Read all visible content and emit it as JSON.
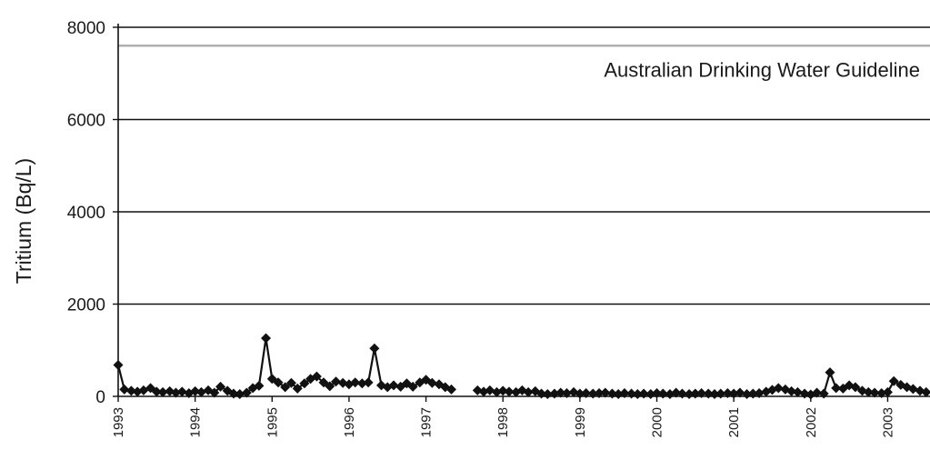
{
  "chart_data": {
    "type": "line",
    "title": "",
    "xlabel": "",
    "ylabel": "Tritium (Bq/L)",
    "ylim": [
      0,
      8000
    ],
    "yticks": [
      0,
      2000,
      4000,
      6000,
      8000
    ],
    "xlim": [
      1993.0,
      2003.55
    ],
    "xticks": [
      "1993",
      "1994",
      "1995",
      "1996",
      "1997",
      "1998",
      "1999",
      "2000",
      "2001",
      "2002",
      "2003"
    ],
    "grid": true,
    "reference_line": {
      "label": "Australian Drinking Water Guideline",
      "value": 7600,
      "color": "#b0b0b0"
    },
    "series": [
      {
        "name": "",
        "color": "#111111",
        "marker": "diamond",
        "segments": [
          [
            [
              1993.0,
              680
            ],
            [
              1993.08,
              150
            ],
            [
              1993.17,
              120
            ],
            [
              1993.25,
              100
            ],
            [
              1993.33,
              130
            ],
            [
              1993.42,
              180
            ],
            [
              1993.5,
              100
            ],
            [
              1993.58,
              90
            ],
            [
              1993.67,
              110
            ],
            [
              1993.75,
              80
            ],
            [
              1993.83,
              100
            ],
            [
              1993.92,
              70
            ],
            [
              1994.0,
              110
            ],
            [
              1994.08,
              90
            ],
            [
              1994.17,
              130
            ],
            [
              1994.25,
              80
            ],
            [
              1994.33,
              210
            ],
            [
              1994.42,
              120
            ],
            [
              1994.5,
              60
            ],
            [
              1994.58,
              50
            ],
            [
              1994.67,
              80
            ],
            [
              1994.75,
              180
            ],
            [
              1994.83,
              230
            ],
            [
              1994.92,
              1260
            ],
            [
              1995.0,
              380
            ],
            [
              1995.08,
              300
            ],
            [
              1995.17,
              200
            ],
            [
              1995.25,
              290
            ],
            [
              1995.33,
              170
            ],
            [
              1995.42,
              280
            ],
            [
              1995.5,
              380
            ],
            [
              1995.58,
              430
            ],
            [
              1995.67,
              300
            ],
            [
              1995.75,
              220
            ],
            [
              1995.83,
              320
            ],
            [
              1995.92,
              290
            ],
            [
              1996.0,
              260
            ],
            [
              1996.08,
              300
            ],
            [
              1996.17,
              280
            ],
            [
              1996.25,
              300
            ],
            [
              1996.33,
              1040
            ],
            [
              1996.42,
              240
            ],
            [
              1996.5,
              200
            ],
            [
              1996.58,
              240
            ],
            [
              1996.67,
              210
            ],
            [
              1996.75,
              280
            ],
            [
              1996.83,
              210
            ],
            [
              1996.92,
              300
            ],
            [
              1997.0,
              360
            ],
            [
              1997.08,
              290
            ],
            [
              1997.17,
              260
            ],
            [
              1997.25,
              200
            ],
            [
              1997.33,
              150
            ]
          ],
          [
            [
              1997.67,
              130
            ],
            [
              1997.75,
              100
            ],
            [
              1997.83,
              130
            ],
            [
              1997.92,
              90
            ],
            [
              1998.0,
              120
            ],
            [
              1998.08,
              100
            ],
            [
              1998.17,
              90
            ],
            [
              1998.25,
              130
            ],
            [
              1998.33,
              90
            ],
            [
              1998.42,
              110
            ],
            [
              1998.5,
              60
            ],
            [
              1998.58,
              50
            ],
            [
              1998.67,
              60
            ],
            [
              1998.75,
              80
            ],
            [
              1998.83,
              70
            ],
            [
              1998.92,
              90
            ],
            [
              1999.0,
              60
            ],
            [
              1999.08,
              70
            ],
            [
              1999.17,
              60
            ],
            [
              1999.25,
              70
            ],
            [
              1999.33,
              80
            ],
            [
              1999.42,
              60
            ],
            [
              1999.5,
              50
            ],
            [
              1999.58,
              70
            ],
            [
              1999.67,
              60
            ],
            [
              1999.75,
              50
            ],
            [
              1999.83,
              60
            ],
            [
              1999.92,
              50
            ],
            [
              2000.0,
              70
            ],
            [
              2000.08,
              60
            ],
            [
              2000.17,
              50
            ],
            [
              2000.25,
              80
            ],
            [
              2000.33,
              60
            ],
            [
              2000.42,
              50
            ],
            [
              2000.5,
              60
            ],
            [
              2000.58,
              70
            ],
            [
              2000.67,
              60
            ],
            [
              2000.75,
              50
            ],
            [
              2000.83,
              60
            ],
            [
              2000.92,
              70
            ],
            [
              2001.0,
              60
            ],
            [
              2001.08,
              80
            ],
            [
              2001.17,
              50
            ],
            [
              2001.25,
              60
            ],
            [
              2001.33,
              70
            ],
            [
              2001.42,
              100
            ],
            [
              2001.5,
              140
            ],
            [
              2001.58,
              180
            ],
            [
              2001.67,
              150
            ],
            [
              2001.75,
              110
            ],
            [
              2001.83,
              90
            ],
            [
              2001.92,
              60
            ],
            [
              2002.0,
              40
            ],
            [
              2002.08,
              80
            ],
            [
              2002.17,
              60
            ],
            [
              2002.25,
              520
            ],
            [
              2002.33,
              180
            ],
            [
              2002.42,
              170
            ],
            [
              2002.5,
              240
            ],
            [
              2002.58,
              200
            ],
            [
              2002.67,
              120
            ],
            [
              2002.75,
              90
            ],
            [
              2002.83,
              80
            ],
            [
              2002.92,
              70
            ],
            [
              2003.0,
              90
            ],
            [
              2003.08,
              330
            ],
            [
              2003.17,
              250
            ],
            [
              2003.25,
              200
            ],
            [
              2003.33,
              160
            ],
            [
              2003.42,
              120
            ],
            [
              2003.5,
              90
            ]
          ]
        ]
      }
    ]
  }
}
